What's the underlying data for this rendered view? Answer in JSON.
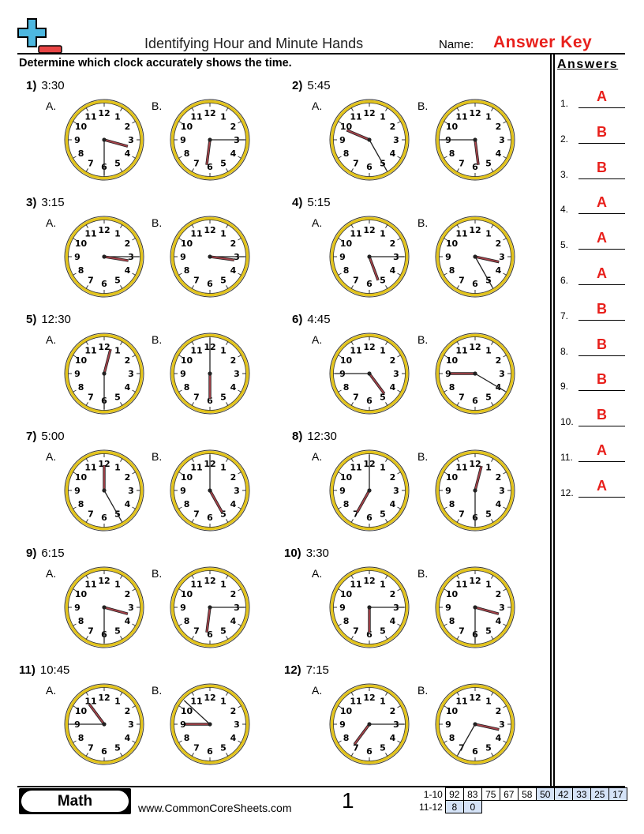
{
  "header": {
    "title": "Identifying Hour and Minute Hands",
    "name_label": "Name:",
    "name_value": "Answer Key",
    "logo_colors": {
      "plus": "#4db8e0",
      "minus": "#e84545"
    }
  },
  "instructions": "Determine which clock accurately shows the time.",
  "option_labels": [
    "A.",
    "B."
  ],
  "problems": [
    {
      "num": "1)",
      "time": "3:30",
      "clocks": [
        {
          "hour": 3.5,
          "minute": 30
        },
        {
          "hour": 6.25,
          "minute": 15
        }
      ]
    },
    {
      "num": "2)",
      "time": "5:45",
      "clocks": [
        {
          "hour": 9.75,
          "minute": 25
        },
        {
          "hour": 5.75,
          "minute": 45
        }
      ]
    },
    {
      "num": "3)",
      "time": "3:15",
      "clocks": [
        {
          "hour": 3.3,
          "minute": 15
        },
        {
          "hour": 3.25,
          "minute": 15
        }
      ]
    },
    {
      "num": "4)",
      "time": "5:15",
      "clocks": [
        {
          "hour": 5.3,
          "minute": 15
        },
        {
          "hour": 3.4,
          "minute": 25
        }
      ]
    },
    {
      "num": "5)",
      "time": "12:30",
      "clocks": [
        {
          "hour": 0.5,
          "minute": 30
        },
        {
          "hour": 6,
          "minute": 0
        }
      ]
    },
    {
      "num": "6)",
      "time": "4:45",
      "clocks": [
        {
          "hour": 4.75,
          "minute": 45
        },
        {
          "hour": 9,
          "minute": 20
        }
      ]
    },
    {
      "num": "7)",
      "time": "5:00",
      "clocks": [
        {
          "hour": 0,
          "minute": 25
        },
        {
          "hour": 5,
          "minute": 0
        }
      ]
    },
    {
      "num": "8)",
      "time": "12:30",
      "clocks": [
        {
          "hour": 7,
          "minute": 0
        },
        {
          "hour": 0.5,
          "minute": 30
        }
      ]
    },
    {
      "num": "9)",
      "time": "6:15",
      "clocks": [
        {
          "hour": 3.5,
          "minute": 30
        },
        {
          "hour": 6.25,
          "minute": 15
        }
      ]
    },
    {
      "num": "10)",
      "time": "3:30",
      "clocks": [
        {
          "hour": 6,
          "minute": 15
        },
        {
          "hour": 3.5,
          "minute": 30
        }
      ]
    },
    {
      "num": "11)",
      "time": "10:45",
      "clocks": [
        {
          "hour": 10.75,
          "minute": 45
        },
        {
          "hour": 9,
          "minute": 52
        }
      ]
    },
    {
      "num": "12)",
      "time": "7:15",
      "clocks": [
        {
          "hour": 7.25,
          "minute": 15
        },
        {
          "hour": 3.4,
          "minute": 35
        }
      ]
    }
  ],
  "clock_colors": {
    "rim": "#e3c41c",
    "hour_hand": "#a8424a",
    "minute_hand": "#222222"
  },
  "answers": {
    "heading": "Answers",
    "items": [
      {
        "num": "1.",
        "val": "A"
      },
      {
        "num": "2.",
        "val": "B"
      },
      {
        "num": "3.",
        "val": "B"
      },
      {
        "num": "4.",
        "val": "A"
      },
      {
        "num": "5.",
        "val": "A"
      },
      {
        "num": "6.",
        "val": "A"
      },
      {
        "num": "7.",
        "val": "B"
      },
      {
        "num": "8.",
        "val": "B"
      },
      {
        "num": "9.",
        "val": "B"
      },
      {
        "num": "10.",
        "val": "B"
      },
      {
        "num": "11.",
        "val": "A"
      },
      {
        "num": "12.",
        "val": "A"
      }
    ]
  },
  "footer": {
    "subject": "Math",
    "site": "www.CommonCoreSheets.com",
    "page": "1",
    "score_rows": [
      {
        "label": "1-10",
        "cells": [
          "92",
          "83",
          "75",
          "67",
          "58",
          "50",
          "42",
          "33",
          "25",
          "17"
        ],
        "highlight_from": 5
      },
      {
        "label": "11-12",
        "cells": [
          "8",
          "0"
        ],
        "highlight_from": 0
      }
    ]
  }
}
